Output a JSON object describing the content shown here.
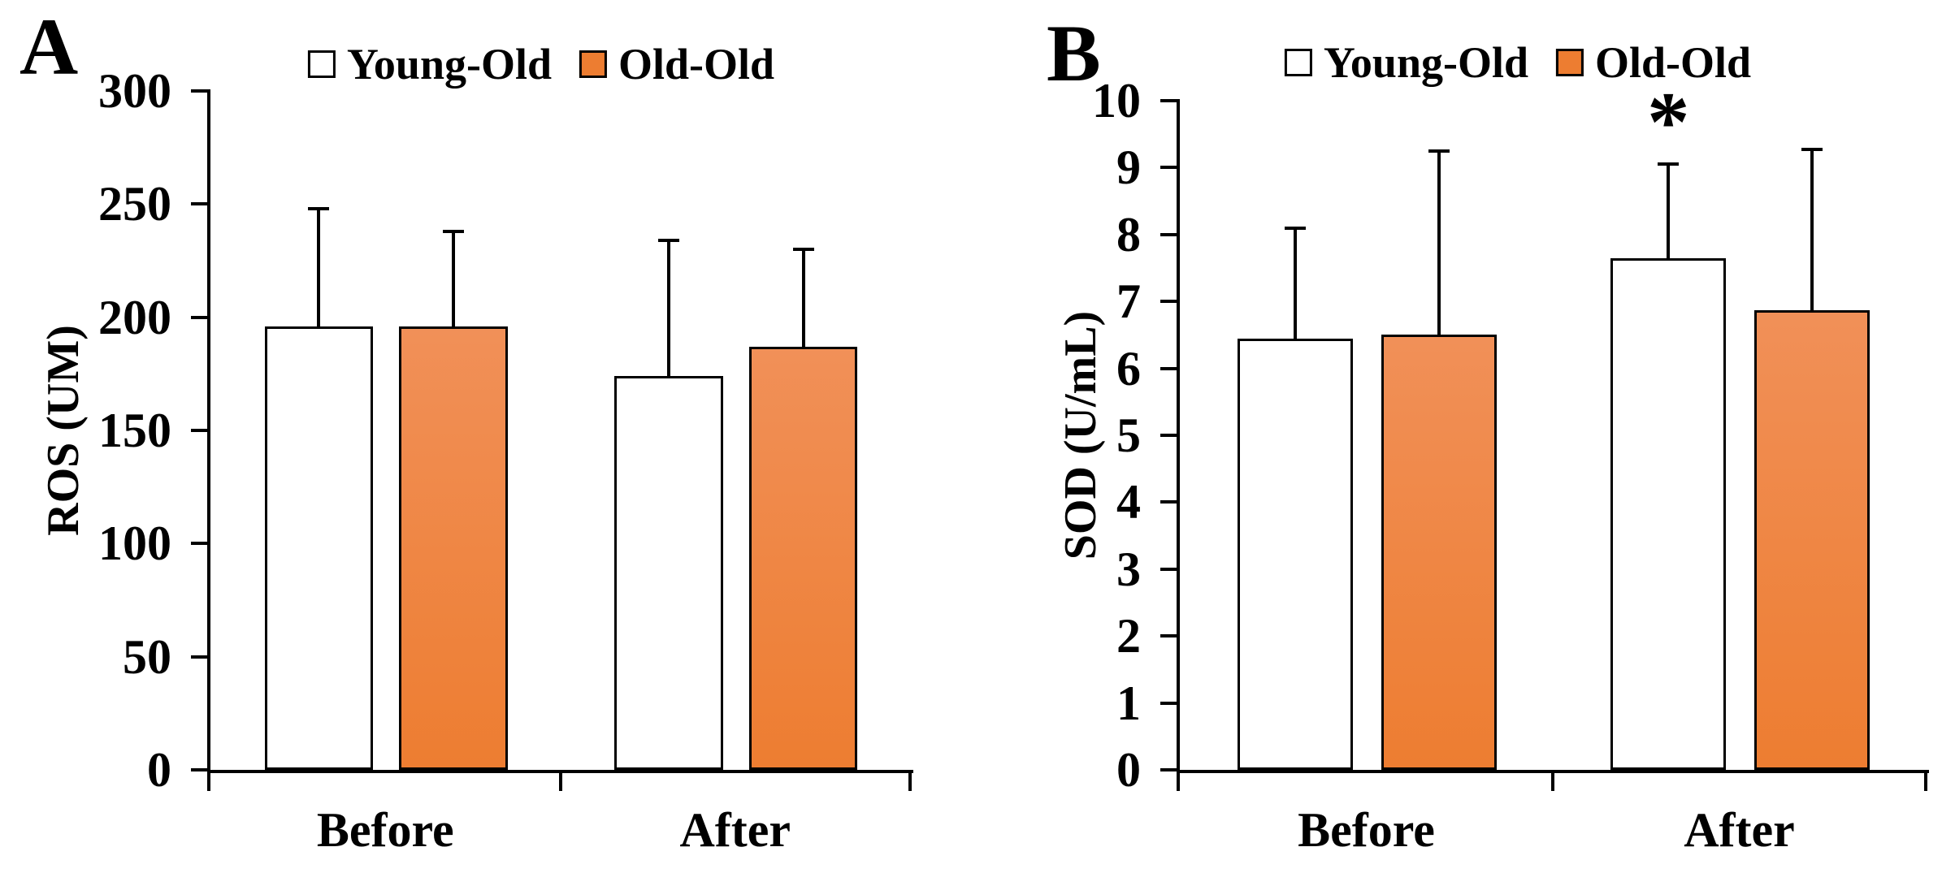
{
  "figure": {
    "background": "#FFFFFF",
    "panels": [
      "A",
      "B"
    ]
  },
  "colors": {
    "black": "#000000",
    "young_old_fill": "#FFFFFF",
    "old_old_fill": "#ED7D31",
    "old_old_fill_top": "#F19058",
    "background": "#FFFFFF"
  },
  "legend": {
    "items": [
      {
        "label": "Young-Old",
        "fill": "#FFFFFF"
      },
      {
        "label": "Old-Old",
        "fill": "#ED7D31"
      }
    ]
  },
  "chart_data": [
    {
      "type": "bar",
      "panel_label": "A",
      "ylabel": "ROS (UM)",
      "xlabel": "",
      "ylim": [
        0,
        300
      ],
      "ytick_step": 50,
      "yticks": [
        300,
        250,
        200,
        150,
        100,
        50,
        0
      ],
      "categories": [
        "Before",
        "After"
      ],
      "legend_position": "top",
      "grid": false,
      "series": [
        {
          "name": "Young-Old",
          "fill": "#FFFFFF",
          "values": [
            196,
            174
          ],
          "error_up": [
            52,
            60
          ]
        },
        {
          "name": "Old-Old",
          "fill": "#ED7D31",
          "values": [
            196,
            187
          ],
          "error_up": [
            42,
            43
          ]
        }
      ],
      "annotations": []
    },
    {
      "type": "bar",
      "panel_label": "B",
      "ylabel": "SOD (U/mL)",
      "xlabel": "",
      "ylim": [
        0,
        10
      ],
      "ytick_step": 1,
      "yticks": [
        10,
        9,
        8,
        7,
        6,
        5,
        4,
        3,
        2,
        1,
        0
      ],
      "categories": [
        "Before",
        "After"
      ],
      "legend_position": "top",
      "grid": false,
      "series": [
        {
          "name": "Young-Old",
          "fill": "#FFFFFF",
          "values": [
            6.45,
            7.65
          ],
          "error_up": [
            1.65,
            1.4
          ]
        },
        {
          "name": "Old-Old",
          "fill": "#ED7D31",
          "values": [
            6.5,
            6.87
          ],
          "error_up": [
            2.75,
            2.4
          ]
        }
      ],
      "annotations": [
        {
          "text": "*",
          "category_index": 1,
          "series_index": 0
        }
      ]
    }
  ]
}
